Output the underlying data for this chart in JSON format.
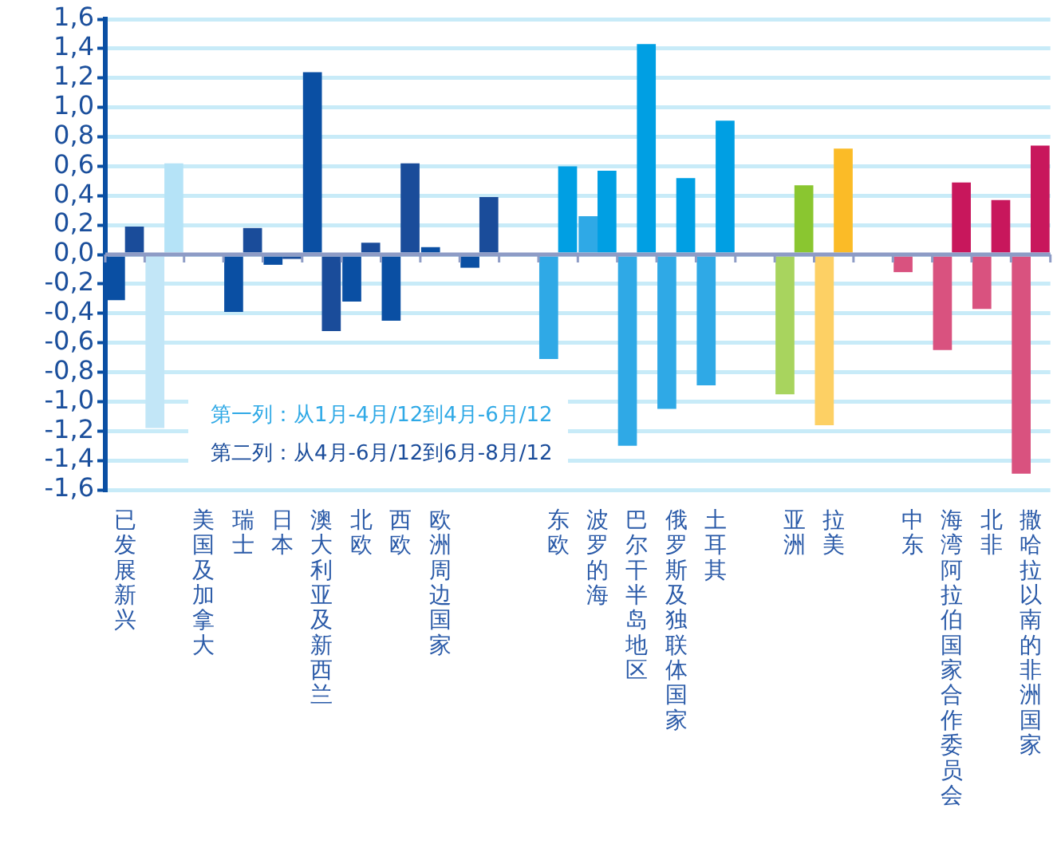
{
  "chart_data": {
    "type": "bar",
    "categories": [
      "已发展新兴",
      null,
      "美国及加拿大",
      "瑞士",
      "日本",
      "澳大利亚及新西兰",
      "北欧",
      "西欧",
      "欧洲周边国家",
      null,
      null,
      "东欧",
      "波罗的海",
      "巴尔干半岛地区",
      "俄罗斯及独联体国家",
      "土耳其",
      null,
      "亚洲",
      "拉美",
      null,
      "中东",
      "海湾阿拉伯国家合作委员会",
      "北非",
      "撒哈拉以南的非洲国家"
    ],
    "series": [
      {
        "name": "第一列：从1月-4月/12到4月-6月/12",
        "color": "#2fa9e6",
        "colors": [
          "#0a4fa3",
          "#c2e6f7",
          "#0a4fa3",
          "#0a4fa3",
          "#0a4fa3",
          "#0a4fa3",
          "#0a4fa3",
          "#0a4fa3",
          "#0a4fa3",
          "#0a4fa3",
          "#0a4fa3",
          "#2fa9e6",
          "#2fa9e6",
          "#2fa9e6",
          "#2fa9e6",
          "#2fa9e6",
          "#2fa9e6",
          "#a8d45e",
          "#fdd064",
          "#d9527f",
          "#d9527f",
          "#d9527f",
          "#d9527f",
          "#d9527f"
        ],
        "values": [
          -0.31,
          -1.18,
          null,
          -0.39,
          -0.07,
          1.24,
          -0.32,
          -0.45,
          0.05,
          -0.09,
          null,
          -0.71,
          0.26,
          -1.3,
          -1.05,
          -0.89,
          null,
          -0.95,
          -1.16,
          null,
          -0.12,
          -0.65,
          -0.37,
          -1.49
        ]
      },
      {
        "name": "第二列：从4月-6月/12到6月-8月/12",
        "color": "#1a4c9a",
        "colors": [
          "#1a4c9a",
          "#b5e3f7",
          "#1a4c9a",
          "#1a4c9a",
          "#1a4c9a",
          "#1a4c9a",
          "#1a4c9a",
          "#1a4c9a",
          "#1a4c9a",
          "#1a4c9a",
          "#1a4c9a",
          "#009fe3",
          "#009fe3",
          "#009fe3",
          "#009fe3",
          "#009fe3",
          "#009fe3",
          "#8ac630",
          "#fbbb27",
          "#c8175c",
          "#c8175c",
          "#c8175c",
          "#c8175c",
          "#c8175c"
        ],
        "values": [
          0.19,
          0.62,
          null,
          0.18,
          -0.03,
          -0.52,
          0.08,
          0.62,
          null,
          0.39,
          null,
          0.6,
          0.57,
          1.43,
          0.52,
          0.91,
          null,
          0.47,
          0.72,
          null,
          null,
          0.49,
          0.37,
          0.74
        ]
      }
    ],
    "ylim": [
      -1.6,
      1.6
    ],
    "yticks": [
      {
        "value": -1.6,
        "label": "-1,6"
      },
      {
        "value": -1.4,
        "label": "-1,4"
      },
      {
        "value": -1.2,
        "label": "-1,2"
      },
      {
        "value": -1.0,
        "label": "-1,0"
      },
      {
        "value": -0.8,
        "label": "-0,8"
      },
      {
        "value": -0.6,
        "label": "-0,6"
      },
      {
        "value": -0.4,
        "label": "-0,4"
      },
      {
        "value": -0.2,
        "label": "-0,2"
      },
      {
        "value": 0,
        "label": "0,0"
      },
      {
        "value": 0.2,
        "label": "0,2"
      },
      {
        "value": 0.4,
        "label": "0,4"
      },
      {
        "value": 0.6,
        "label": "0,6"
      },
      {
        "value": 0.8,
        "label": "0,8"
      },
      {
        "value": 1.0,
        "label": "1,0"
      },
      {
        "value": 1.2,
        "label": "1,2"
      },
      {
        "value": 1.4,
        "label": "1,4"
      },
      {
        "value": 1.6,
        "label": "1,6"
      }
    ],
    "ref_lines": [
      {
        "axis": "y",
        "value": 0,
        "color": "#8e9cc6"
      }
    ],
    "grid": "y",
    "legend": "bottom left"
  }
}
